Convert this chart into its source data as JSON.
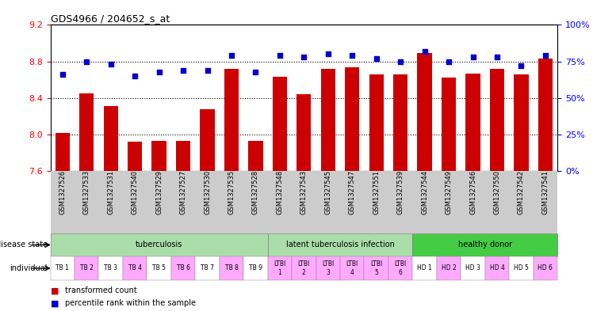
{
  "title": "GDS4966 / 204652_s_at",
  "samples": [
    "GSM1327526",
    "GSM1327533",
    "GSM1327531",
    "GSM1327540",
    "GSM1327529",
    "GSM1327527",
    "GSM1327530",
    "GSM1327535",
    "GSM1327528",
    "GSM1327548",
    "GSM1327543",
    "GSM1327545",
    "GSM1327547",
    "GSM1327551",
    "GSM1327539",
    "GSM1327544",
    "GSM1327549",
    "GSM1327546",
    "GSM1327550",
    "GSM1327542",
    "GSM1327541"
  ],
  "bar_values": [
    8.02,
    8.45,
    8.31,
    7.92,
    7.93,
    7.93,
    8.28,
    8.72,
    7.93,
    8.63,
    8.44,
    8.72,
    8.74,
    8.66,
    8.66,
    8.89,
    8.62,
    8.67,
    8.72,
    8.66,
    8.83
  ],
  "dot_values": [
    66,
    75,
    73,
    65,
    68,
    69,
    69,
    79,
    68,
    79,
    78,
    80,
    79,
    77,
    75,
    82,
    75,
    78,
    78,
    72,
    79
  ],
  "ylim_left": [
    7.6,
    9.2
  ],
  "ylim_right": [
    0,
    100
  ],
  "yticks_left": [
    7.6,
    8.0,
    8.4,
    8.8,
    9.2
  ],
  "yticks_right": [
    0,
    25,
    50,
    75,
    100
  ],
  "bar_color": "#cc0000",
  "dot_color": "#0000cc",
  "disease_labels_text": [
    "tuberculosis",
    "latent tuberculosis infection",
    "healthy donor"
  ],
  "disease_ranges": [
    [
      0,
      9
    ],
    [
      9,
      15
    ],
    [
      15,
      21
    ]
  ],
  "disease_bg_colors": [
    "#aaddaa",
    "#aaddaa",
    "#44cc44"
  ],
  "individual_labels": [
    "TB 1",
    "TB 2",
    "TB 3",
    "TB 4",
    "TB 5",
    "TB 6",
    "TB 7",
    "TB 8",
    "TB 9",
    "LTBI\n1",
    "LTBI\n2",
    "LTBI\n3",
    "LTBI\n4",
    "LTBI\n5",
    "LTBI\n6",
    "HD 1",
    "HD 2",
    "HD 3",
    "HD 4",
    "HD 5",
    "HD 6"
  ],
  "individual_colors": [
    "#ffffff",
    "#ffaaff",
    "#ffffff",
    "#ffaaff",
    "#ffffff",
    "#ffaaff",
    "#ffffff",
    "#ffaaff",
    "#ffffff",
    "#ffaaff",
    "#ffaaff",
    "#ffaaff",
    "#ffaaff",
    "#ffaaff",
    "#ffaaff",
    "#ffffff",
    "#ffaaff",
    "#ffffff",
    "#ffaaff",
    "#ffffff",
    "#ffaaff"
  ],
  "xtick_bg_color": "#cccccc",
  "legend_items": [
    {
      "label": "transformed count",
      "color": "#cc0000"
    },
    {
      "label": "percentile rank within the sample",
      "color": "#0000cc"
    }
  ]
}
